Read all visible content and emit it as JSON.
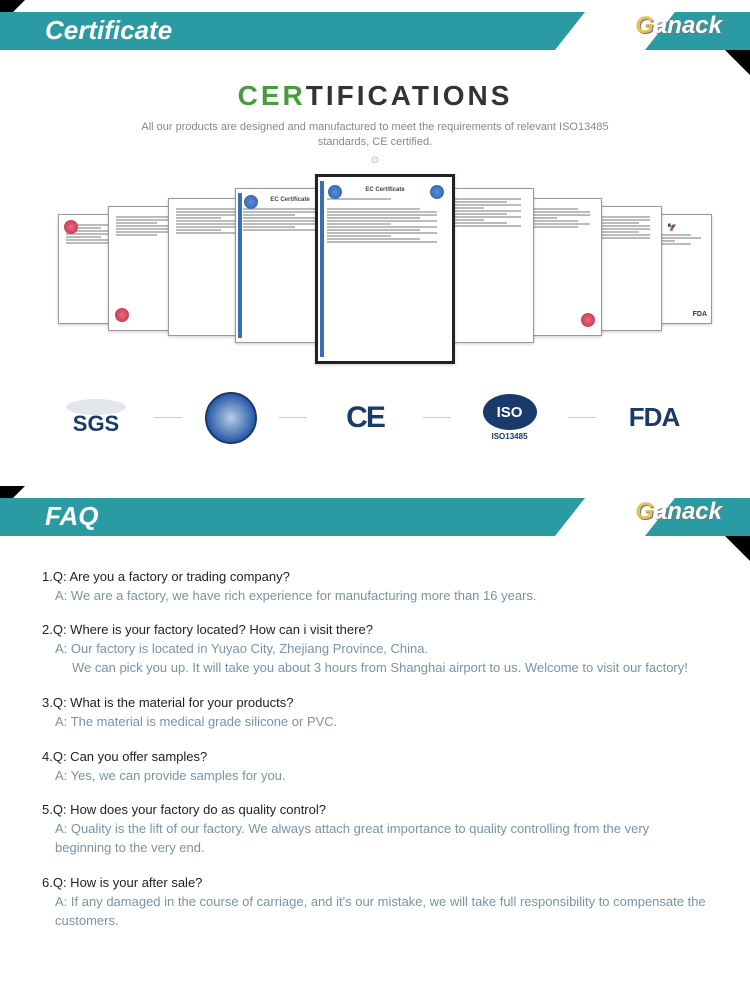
{
  "colors": {
    "teal": "#2b9ba3",
    "navy": "#1a3a6b",
    "highlight_green": "#4a9b3e",
    "answer": "#7a93a3",
    "question": "#222222"
  },
  "brand": "Ganack",
  "banners": {
    "certificate": {
      "title": "Certificate"
    },
    "faq": {
      "title": "FAQ"
    }
  },
  "certifications": {
    "heading_highlight": "CER",
    "heading_rest": "TIFICATIONS",
    "subtext": "All our products are designed and manufactured to meet the requirements of relevant ISO13485 standards, CE certified.",
    "center_doc_title": "EC Certificate",
    "logos": {
      "sgs": "SGS",
      "ce": "CE",
      "iso": "ISO",
      "iso_sub": "ISO13485",
      "fda": "FDA"
    }
  },
  "faq": {
    "items": [
      {
        "n": "1",
        "q": "Are you a factory or trading company?",
        "a": [
          "We are a factory, we have rich experience for manufacturing more than 16 years."
        ]
      },
      {
        "n": "2",
        "q": "Where is your factory located? How can i visit there?",
        "a": [
          "Our factory is located in Yuyao City, Zhejiang Province, China.",
          "We can pick you up. It will take you about 3 hours from Shanghai airport to us. Welcome to visit our factory!"
        ]
      },
      {
        "n": "3",
        "q": "What is the material for your products?",
        "a": [
          "The material is medical grade silicone or PVC."
        ]
      },
      {
        "n": "4",
        "q": "Can you offer samples?",
        "a": [
          "Yes, we can provide samples for you."
        ]
      },
      {
        "n": "5",
        "q": "How does your factory do as quality control?",
        "a": [
          "Quality is the lift of our factory. We always attach great importance to quality controlling from the very beginning to the very end."
        ]
      },
      {
        "n": "6",
        "q": "How is your after sale?",
        "a": [
          "If any damaged in the course of carriage, and it's our mistake, we will take full responsibility to compensate the customers."
        ]
      }
    ]
  }
}
